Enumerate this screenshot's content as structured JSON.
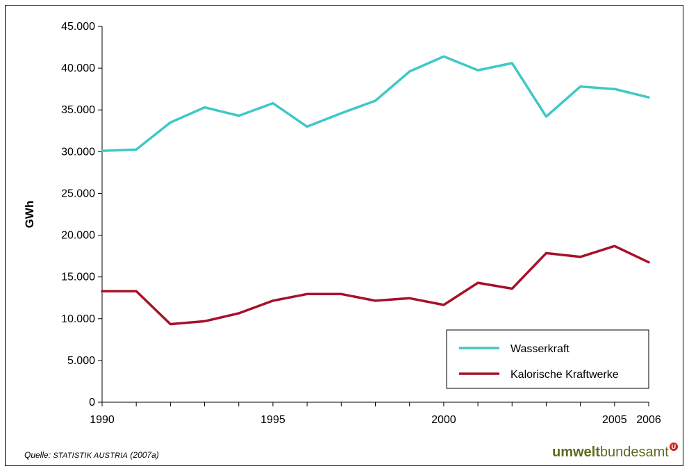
{
  "chart_data": {
    "type": "line",
    "title": "",
    "xlabel": "",
    "ylabel": "GWh",
    "x": [
      1990,
      1991,
      1992,
      1993,
      1994,
      1995,
      1996,
      1997,
      1998,
      1999,
      2000,
      2001,
      2002,
      2003,
      2004,
      2005,
      2006
    ],
    "x_tick_labels": [
      "1990",
      "1995",
      "2000",
      "2005",
      "2006"
    ],
    "x_tick_values": [
      1990,
      1995,
      2000,
      2005,
      2006
    ],
    "y_tick_labels": [
      "0",
      "5.000",
      "10.000",
      "15.000",
      "20.000",
      "25.000",
      "30.000",
      "35.000",
      "40.000",
      "45.000"
    ],
    "y_tick_values": [
      0,
      5000,
      10000,
      15000,
      20000,
      25000,
      30000,
      35000,
      40000,
      45000
    ],
    "ylim": [
      0,
      45000
    ],
    "xlim": [
      1990,
      2006
    ],
    "grid": false,
    "legend_position": "bottom-right",
    "series": [
      {
        "name": "Wasserkraft",
        "color": "#3ec8c8",
        "values": [
          30100,
          30250,
          33500,
          35300,
          34300,
          35800,
          33000,
          34600,
          36100,
          39600,
          41400,
          39750,
          40600,
          34200,
          37800,
          37500,
          36500
        ]
      },
      {
        "name": "Kalorische Kraftwerke",
        "color": "#a8102a",
        "values": [
          13300,
          13300,
          9350,
          9700,
          10650,
          12150,
          12950,
          12950,
          12150,
          12450,
          11650,
          14300,
          13600,
          17850,
          17400,
          18700,
          16750
        ]
      }
    ]
  },
  "footer": {
    "source_prefix": "Quelle: ",
    "source_org": "STATISTIK AUSTRIA",
    "source_suffix": " (2007a)",
    "logo_bold": "umwelt",
    "logo_regular": "bundesamt",
    "logo_mark": "U"
  }
}
